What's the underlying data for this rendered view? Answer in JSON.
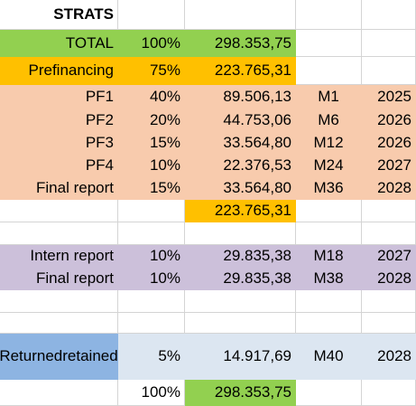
{
  "title": "STRATS",
  "total": {
    "label": "TOTAL",
    "pct": "100%",
    "amount": "298.353,75"
  },
  "prefinancing": {
    "label": "Prefinancing",
    "pct": "75%",
    "amount": "223.765,31"
  },
  "pf_rows": [
    {
      "label": "PF1",
      "pct": "40%",
      "amount": "89.506,13",
      "month": "M1",
      "year": "2025"
    },
    {
      "label": "PF2",
      "pct": "20%",
      "amount": "44.753,06",
      "month": "M6",
      "year": "2026"
    },
    {
      "label": "PF3",
      "pct": "15%",
      "amount": "33.564,80",
      "month": "M12",
      "year": "2026"
    },
    {
      "label": "PF4",
      "pct": "10%",
      "amount": "22.376,53",
      "month": "M24",
      "year": "2027"
    },
    {
      "label": "Final report",
      "pct": "15%",
      "amount": "33.564,80",
      "month": "M36",
      "year": "2028"
    }
  ],
  "pf_subtotal": "223.765,31",
  "report_rows": [
    {
      "label": "Intern report",
      "pct": "10%",
      "amount": "29.835,38",
      "month": "M18",
      "year": "2027"
    },
    {
      "label": "Final report",
      "pct": "10%",
      "amount": "29.835,38",
      "month": "M38",
      "year": "2028"
    }
  ],
  "retained": {
    "label_line1": "Returned",
    "label_line2": "retained",
    "pct": "5%",
    "amount": "14.917,69",
    "month": "M40",
    "year": "2028"
  },
  "grand_total": {
    "pct": "100%",
    "amount": "298.353,75"
  },
  "colors": {
    "green": "#92d050",
    "orange": "#ffc000",
    "peach": "#f8cbad",
    "lavender": "#ccc0da",
    "blue": "#8db4e2",
    "light_blue": "#dce6f1"
  }
}
